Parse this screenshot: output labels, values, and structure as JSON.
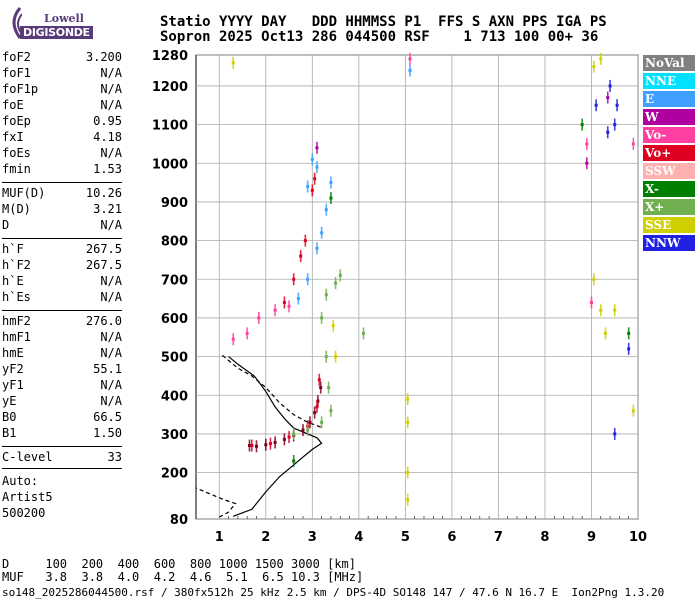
{
  "logo": {
    "line1": "Lowell",
    "line2": "DIGISONDE"
  },
  "header": {
    "row1": "Statio YYYY DAY   DDD HHMMSS P1  FFS S AXN PPS IGA PS",
    "row2": "Sopron 2025 Oct13 286 044500 RSF    1 713 100 00+ 36"
  },
  "params_group1": [
    {
      "k": "foF2",
      "v": "3.200"
    },
    {
      "k": "foF1",
      "v": "N/A"
    },
    {
      "k": "foF1p",
      "v": "N/A"
    },
    {
      "k": "foE",
      "v": "N/A"
    },
    {
      "k": "foEp",
      "v": "0.95"
    },
    {
      "k": "fxI",
      "v": "4.18"
    },
    {
      "k": "foEs",
      "v": "N/A"
    },
    {
      "k": "fmin",
      "v": "1.53"
    }
  ],
  "params_group2": [
    {
      "k": "MUF(D)",
      "v": "10.26"
    },
    {
      "k": "M(D)",
      "v": "3.21"
    },
    {
      "k": "D",
      "v": "N/A"
    }
  ],
  "params_group3": [
    {
      "k": "h`F",
      "v": "267.5"
    },
    {
      "k": "h`F2",
      "v": "267.5"
    },
    {
      "k": "h`E",
      "v": "N/A"
    },
    {
      "k": "h`Es",
      "v": "N/A"
    }
  ],
  "params_group4": [
    {
      "k": "hmF2",
      "v": "276.0"
    },
    {
      "k": "hmF1",
      "v": "N/A"
    },
    {
      "k": "hmE",
      "v": "N/A"
    },
    {
      "k": "yF2",
      "v": "55.1"
    },
    {
      "k": "yF1",
      "v": "N/A"
    },
    {
      "k": "yE",
      "v": "N/A"
    },
    {
      "k": "B0",
      "v": "66.5"
    },
    {
      "k": "B1",
      "v": "1.50"
    }
  ],
  "params_group5": [
    {
      "k": "C-level",
      "v": "33"
    }
  ],
  "auto": {
    "label": "Auto:",
    "artist": "Artist5",
    "version": "500200"
  },
  "legend": [
    {
      "label": "NoVal",
      "color": "#808080"
    },
    {
      "label": "NNE",
      "color": "#00e0ff"
    },
    {
      "label": "E",
      "color": "#3fa0ff"
    },
    {
      "label": "W",
      "color": "#b000a0"
    },
    {
      "label": "Vo-",
      "color": "#ff40a0"
    },
    {
      "label": "Vo+",
      "color": "#e00020"
    },
    {
      "label": "SSW",
      "color": "#ffb0b0"
    },
    {
      "label": "X-",
      "color": "#008000"
    },
    {
      "label": "X+",
      "color": "#70b050"
    },
    {
      "label": "SSE",
      "color": "#d0d000"
    },
    {
      "label": "NNW",
      "color": "#2020e0"
    }
  ],
  "muf_table": {
    "row1": "D     100  200  400  600  800 1000 1500 3000 [km]",
    "row2": "MUF   3.8  3.8  4.0  4.2  4.6  5.1  6.5 10.3 [MHz]"
  },
  "footer": "so148_2025286044500.rsf / 380fx512h 25 kHz 2.5 km / DPS-4D SO148 147 / 47.6 N 16.7 E  Ion2Png 1.3.20",
  "chart_data": {
    "type": "scatter",
    "title": "",
    "xlabel": "",
    "ylabel": "",
    "xlim": [
      0.5,
      10
    ],
    "ylim": [
      80,
      1280
    ],
    "xticks": [
      1,
      2,
      3,
      4,
      5,
      6,
      7,
      8,
      9,
      10
    ],
    "yticks": [
      80,
      200,
      300,
      400,
      500,
      600,
      700,
      800,
      900,
      1000,
      1100,
      1200,
      1280
    ],
    "grid": true,
    "legend_position": "right",
    "series": [
      {
        "color": "#800020",
        "points": [
          [
            1.65,
            270
          ],
          [
            1.8,
            268
          ],
          [
            2.0,
            272
          ],
          [
            2.2,
            278
          ],
          [
            2.4,
            286
          ],
          [
            2.6,
            296
          ],
          [
            2.8,
            310
          ],
          [
            2.95,
            330
          ],
          [
            3.05,
            355
          ],
          [
            3.12,
            385
          ],
          [
            3.18,
            420
          ]
        ]
      },
      {
        "color": "#e00020",
        "points": [
          [
            1.7,
            270
          ],
          [
            2.1,
            275
          ],
          [
            2.5,
            292
          ],
          [
            2.9,
            320
          ],
          [
            3.1,
            370
          ],
          [
            3.15,
            440
          ],
          [
            2.4,
            640
          ],
          [
            2.6,
            700
          ],
          [
            2.75,
            760
          ],
          [
            2.85,
            800
          ],
          [
            3.0,
            930
          ],
          [
            3.05,
            960
          ]
        ]
      },
      {
        "color": "#3fa0ff",
        "points": [
          [
            2.7,
            650
          ],
          [
            2.9,
            700
          ],
          [
            3.1,
            780
          ],
          [
            3.2,
            820
          ],
          [
            3.3,
            880
          ],
          [
            3.4,
            950
          ],
          [
            3.1,
            990
          ],
          [
            3.0,
            1010
          ],
          [
            2.9,
            940
          ],
          [
            5.1,
            1240
          ]
        ]
      },
      {
        "color": "#70b050",
        "points": [
          [
            2.6,
            300
          ],
          [
            2.9,
            310
          ],
          [
            3.2,
            330
          ],
          [
            3.4,
            360
          ],
          [
            3.35,
            420
          ],
          [
            3.3,
            500
          ],
          [
            3.2,
            600
          ],
          [
            3.3,
            660
          ],
          [
            3.5,
            690
          ],
          [
            3.6,
            710
          ],
          [
            4.1,
            560
          ]
        ]
      },
      {
        "color": "#ff40a0",
        "points": [
          [
            1.3,
            545
          ],
          [
            1.6,
            560
          ],
          [
            1.85,
            600
          ],
          [
            2.2,
            620
          ],
          [
            2.5,
            630
          ],
          [
            5.1,
            1270
          ],
          [
            9.0,
            640
          ],
          [
            8.9,
            1050
          ],
          [
            9.9,
            1050
          ]
        ]
      },
      {
        "color": "#d0d000",
        "points": [
          [
            5.05,
            390
          ],
          [
            5.05,
            330
          ],
          [
            5.05,
            200
          ],
          [
            5.05,
            130
          ],
          [
            9.05,
            700
          ],
          [
            9.2,
            620
          ],
          [
            9.3,
            560
          ],
          [
            9.5,
            620
          ],
          [
            9.05,
            1250
          ],
          [
            9.2,
            1270
          ],
          [
            9.9,
            360
          ],
          [
            1.3,
            1260
          ],
          [
            3.5,
            500
          ],
          [
            3.45,
            580
          ]
        ]
      },
      {
        "color": "#2020e0",
        "points": [
          [
            9.1,
            1150
          ],
          [
            9.35,
            1080
          ],
          [
            9.5,
            1100
          ],
          [
            9.55,
            1150
          ],
          [
            9.4,
            1200
          ],
          [
            9.5,
            300
          ],
          [
            9.8,
            520
          ]
        ]
      },
      {
        "color": "#b000a0",
        "points": [
          [
            8.9,
            1000
          ],
          [
            9.35,
            1170
          ],
          [
            3.1,
            1040
          ]
        ]
      },
      {
        "color": "#008000",
        "points": [
          [
            2.6,
            230
          ],
          [
            3.4,
            910
          ],
          [
            8.8,
            1100
          ],
          [
            9.8,
            560
          ]
        ]
      }
    ],
    "model_profile": {
      "solid": [
        [
          1.3,
          87
        ],
        [
          1.7,
          105
        ],
        [
          2.0,
          150
        ],
        [
          2.3,
          190
        ],
        [
          2.6,
          220
        ],
        [
          2.8,
          240
        ],
        [
          3.0,
          260
        ],
        [
          3.2,
          276
        ],
        [
          3.1,
          290
        ],
        [
          2.9,
          300
        ],
        [
          2.6,
          315
        ],
        [
          2.4,
          340
        ],
        [
          2.2,
          370
        ],
        [
          2.0,
          410
        ],
        [
          1.75,
          450
        ],
        [
          1.4,
          480
        ],
        [
          1.2,
          500
        ]
      ],
      "dashed_low": [
        [
          1.0,
          85
        ],
        [
          1.2,
          98
        ],
        [
          1.35,
          120
        ],
        [
          1.1,
          130
        ],
        [
          0.9,
          140
        ],
        [
          0.7,
          150
        ],
        [
          0.5,
          160
        ]
      ],
      "dashed_high": [
        [
          3.18,
          318
        ],
        [
          2.9,
          330
        ],
        [
          2.6,
          350
        ],
        [
          2.3,
          380
        ],
        [
          2.0,
          420
        ],
        [
          1.7,
          450
        ],
        [
          1.4,
          470
        ],
        [
          1.2,
          490
        ],
        [
          1.05,
          505
        ]
      ]
    }
  }
}
